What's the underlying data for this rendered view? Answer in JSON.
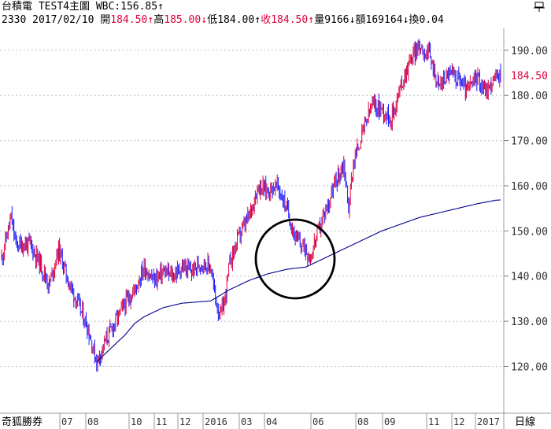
{
  "header": {
    "name": "台積電",
    "window_title": "TEST4主圖",
    "wbc_label": "WBC:",
    "wbc_value": "156.85",
    "wbc_arrow": "↑",
    "code": "2330",
    "date": "2017/02/10",
    "open_label": "開",
    "open_value": "184.50",
    "open_arrow": "↑",
    "high_label": "高",
    "high_value": "185.00",
    "high_arrow": "↓",
    "low_label": "低",
    "low_value": "184.00",
    "low_arrow": "↑",
    "close_label": "收",
    "close_value": "184.50",
    "close_arrow": "↑",
    "volume_label": "量",
    "volume_value": "9166",
    "volume_arrow": "↓",
    "amount_label": "額",
    "amount_value": "169164",
    "amount_arrow": "↓",
    "turnover_label": "換",
    "turnover_value": "0.04"
  },
  "corner_icon": "pin-icon",
  "footer": {
    "watermark": "奇狐勝券",
    "period_label": "日線"
  },
  "colors": {
    "up": "#e0003c",
    "down": "#1a1aff",
    "ma_line": "#00008b",
    "grid": "#c0c0c0",
    "highlight_circle": "#000000",
    "last_price": "#e0003c"
  },
  "chart_data": {
    "type": "candlestick",
    "series": [
      {
        "name": "台積電"
      },
      {
        "name": "WBC"
      }
    ],
    "ylim": [
      110.5,
      194.5
    ],
    "yticks": [
      120.0,
      130.0,
      140.0,
      150.0,
      160.0,
      170.0,
      180.0,
      190.0
    ],
    "ytick_labels": [
      "120.00",
      "130.00",
      "140.00",
      "150.00",
      "160.00",
      "170.00",
      "180.00",
      "190.00"
    ],
    "last_price": 184.5,
    "last_price_label": "184.50",
    "xlabels": [
      "07",
      "08",
      "10",
      "11",
      "12",
      "2016",
      "03",
      "04",
      "06",
      "08",
      "09",
      "11",
      "12",
      "2017"
    ],
    "price_path": [
      [
        0,
        144
      ],
      [
        2,
        153
      ],
      [
        3,
        147
      ],
      [
        6,
        147
      ],
      [
        8,
        143
      ],
      [
        10,
        138
      ],
      [
        12,
        146
      ],
      [
        14,
        139
      ],
      [
        16,
        134
      ],
      [
        18,
        129
      ],
      [
        20,
        121
      ],
      [
        22,
        126
      ],
      [
        24,
        130
      ],
      [
        26,
        134
      ],
      [
        28,
        137
      ],
      [
        30,
        142
      ],
      [
        32,
        139
      ],
      [
        34,
        141
      ],
      [
        36,
        140
      ],
      [
        38,
        142
      ],
      [
        40,
        141
      ],
      [
        42,
        143
      ],
      [
        44,
        142
      ],
      [
        45,
        135
      ],
      [
        46,
        131
      ],
      [
        47,
        135
      ],
      [
        48,
        143
      ],
      [
        50,
        149
      ],
      [
        52,
        153
      ],
      [
        54,
        160
      ],
      [
        56,
        159
      ],
      [
        58,
        160
      ],
      [
        60,
        155
      ],
      [
        62,
        148
      ],
      [
        64,
        146
      ],
      [
        65,
        144
      ],
      [
        66,
        148
      ],
      [
        68,
        154
      ],
      [
        70,
        160
      ],
      [
        72,
        165
      ],
      [
        73,
        155
      ],
      [
        74,
        165
      ],
      [
        76,
        172
      ],
      [
        78,
        178
      ],
      [
        80,
        177
      ],
      [
        82,
        175
      ],
      [
        84,
        182
      ],
      [
        86,
        188
      ],
      [
        88,
        191
      ],
      [
        90,
        189
      ],
      [
        92,
        182
      ],
      [
        94,
        185
      ],
      [
        96,
        184
      ],
      [
        98,
        181
      ],
      [
        100,
        184
      ],
      [
        102,
        181
      ],
      [
        104,
        184
      ],
      [
        105,
        184.5
      ]
    ],
    "ma_path": [
      [
        20,
        121
      ],
      [
        22,
        123
      ],
      [
        24,
        125
      ],
      [
        26,
        127
      ],
      [
        28,
        129.5
      ],
      [
        30,
        131
      ],
      [
        34,
        133
      ],
      [
        38,
        134
      ],
      [
        44,
        134.5
      ],
      [
        48,
        137
      ],
      [
        52,
        139
      ],
      [
        56,
        140.5
      ],
      [
        60,
        141.5
      ],
      [
        64,
        142
      ],
      [
        68,
        144
      ],
      [
        72,
        146
      ],
      [
        76,
        148
      ],
      [
        80,
        150
      ],
      [
        84,
        151.5
      ],
      [
        88,
        153
      ],
      [
        92,
        154
      ],
      [
        96,
        155
      ],
      [
        100,
        156
      ],
      [
        104,
        156.8
      ],
      [
        105,
        156.85
      ]
    ]
  }
}
